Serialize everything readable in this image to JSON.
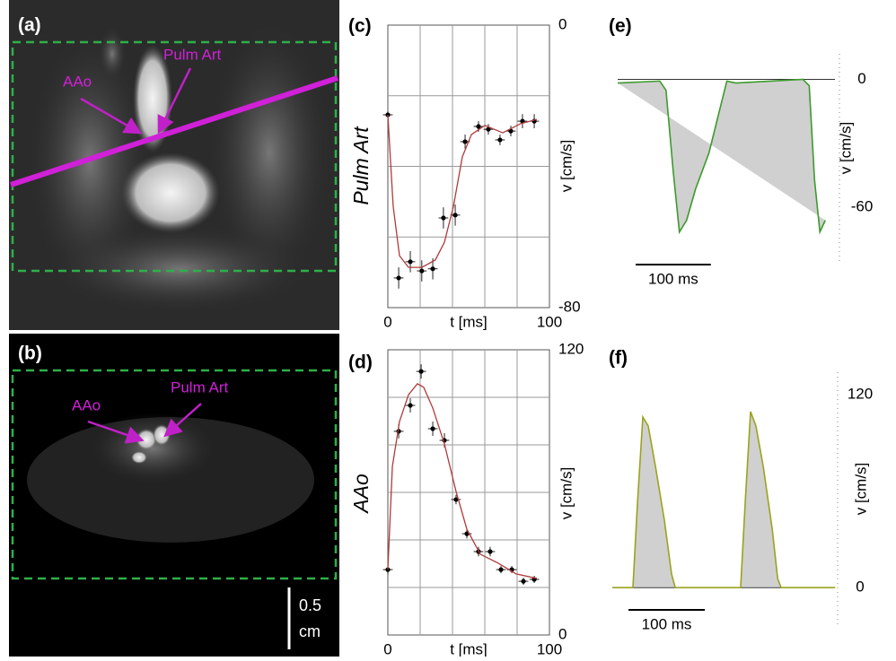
{
  "images": {
    "a": {
      "label": "(a)",
      "annotations": [
        "AAo",
        "Pulm Art"
      ]
    },
    "b": {
      "label": "(b)",
      "annotations": [
        "AAo",
        "Pulm Art"
      ],
      "scale_bar": [
        "0.5",
        "cm"
      ]
    }
  },
  "chart_data": [
    {
      "type": "scatter",
      "panel_label": "(c)",
      "row_label": "Pulm Art",
      "xlabel": "t [ms]",
      "ylabel": "v [cm/s]",
      "xlim": [
        0,
        100
      ],
      "ylim": [
        -80,
        0
      ],
      "xticks": [
        0,
        100
      ],
      "yticks": [
        0,
        -80
      ],
      "xgrid": [
        20,
        40,
        60,
        80
      ],
      "ygrid": [
        -20,
        -40,
        -60
      ],
      "series": [
        {
          "type": "scatter",
          "color": "#000000",
          "x": [
            0,
            6.7,
            13.9,
            21,
            27.8,
            34.4,
            41.7,
            47.8,
            56.1,
            62.2,
            69.4,
            76.1,
            83.3,
            90.6
          ],
          "values": [
            -25.4,
            -71.6,
            -67,
            -69.6,
            -69,
            -54.6,
            -53.8,
            -33,
            -28.7,
            -29.5,
            -32.5,
            -30,
            -27.2,
            -27.2
          ],
          "xerr": 3,
          "yerr": [
            1,
            3,
            3,
            3,
            3,
            3,
            3,
            2,
            1.5,
            1.5,
            1.5,
            1.5,
            2,
            2
          ]
        },
        {
          "type": "line",
          "color": "#b03a3a",
          "x": [
            0,
            3.3,
            7.2,
            12.8,
            21.1,
            29.4,
            35,
            40.6,
            46.1,
            51.7,
            60,
            71.1,
            82.2,
            92.2
          ],
          "values": [
            -25.4,
            -51.3,
            -65.3,
            -68.6,
            -68.6,
            -66.5,
            -61.5,
            -51.3,
            -37.3,
            -31,
            -28.4,
            -30.5,
            -27.9,
            -26.7
          ]
        }
      ]
    },
    {
      "type": "scatter",
      "panel_label": "(d)",
      "row_label": "AAo",
      "xlabel": "t [ms]",
      "ylabel": "v [cm/s]",
      "xlim": [
        0,
        100
      ],
      "ylim": [
        0,
        120
      ],
      "xticks": [
        0,
        100
      ],
      "yticks": [
        120,
        0
      ],
      "xgrid": [
        20,
        40,
        60,
        80
      ],
      "ygrid": [
        20,
        40,
        60,
        80,
        100
      ],
      "series": [
        {
          "type": "scatter",
          "color": "#000000",
          "x": [
            0,
            6.7,
            13.9,
            20.6,
            27.8,
            35,
            42.2,
            48.9,
            56.1,
            63.3,
            70,
            76.7,
            83.9,
            90.6
          ],
          "values": [
            27.5,
            85.7,
            96.6,
            110.9,
            86.8,
            81.9,
            57,
            42.6,
            35.1,
            35.1,
            27.5,
            27.5,
            22.6,
            23.4
          ],
          "xerr": 3,
          "yerr": [
            2,
            3,
            3,
            3,
            3,
            3,
            2,
            2,
            2,
            2,
            1.5,
            1.5,
            1.5,
            1.5
          ]
        },
        {
          "type": "line",
          "color": "#b03a3a",
          "x": [
            0,
            2.8,
            7.2,
            12.8,
            18.3,
            22.2,
            27.8,
            35,
            42.2,
            48.9,
            57.2,
            68.3,
            79.4,
            92.2
          ],
          "values": [
            27.5,
            70.9,
            89.8,
            101.1,
            105.7,
            104.2,
            95.5,
            80.4,
            60.4,
            44.5,
            34,
            30.2,
            25.7,
            23.8
          ]
        }
      ]
    },
    {
      "type": "line",
      "panel_label": "(e)",
      "ylabel": "v [cm/s]",
      "xlim": [
        0,
        295
      ],
      "ylim": [
        -87,
        12
      ],
      "yticks": [
        0,
        -60
      ],
      "scale_bar": {
        "value": 100,
        "label": "100 ms"
      },
      "series": [
        {
          "color": "#3c9a2c",
          "x": [
            0,
            56,
            64.3,
            73.8,
            82.1,
            91.7,
            103.6,
            121.4,
            133.3,
            145.2,
            157.1,
            246.4,
            254.8,
            261.9,
            269,
            276.2
          ],
          "values": [
            -1.7,
            -0.8,
            -5.1,
            -43,
            -71.7,
            -66.2,
            -51.5,
            -34.6,
            -17.7,
            -0.8,
            -1.7,
            0,
            -3,
            -47.3,
            -71.7,
            -66.2
          ]
        }
      ]
    },
    {
      "type": "line",
      "panel_label": "(f)",
      "ylabel": "v [cm/s]",
      "xlim": [
        0,
        295
      ],
      "ylim": [
        -25,
        134
      ],
      "yticks": [
        120,
        0
      ],
      "scale_bar": {
        "value": 100,
        "label": "100 ms"
      },
      "series": [
        {
          "color": "#9aa31e",
          "x": [
            0,
            27,
            33,
            40,
            47,
            56.5,
            68.2,
            77.6,
            82.4,
            168,
            174,
            181,
            188,
            197.6,
            209.4,
            216.5,
            221,
            291.8
          ],
          "values": [
            0,
            0,
            53,
            106.1,
            100.6,
            75.4,
            41.9,
            8.4,
            0,
            0,
            53,
            109.5,
            100.6,
            75.4,
            36.3,
            5.6,
            0,
            0
          ]
        }
      ]
    }
  ]
}
